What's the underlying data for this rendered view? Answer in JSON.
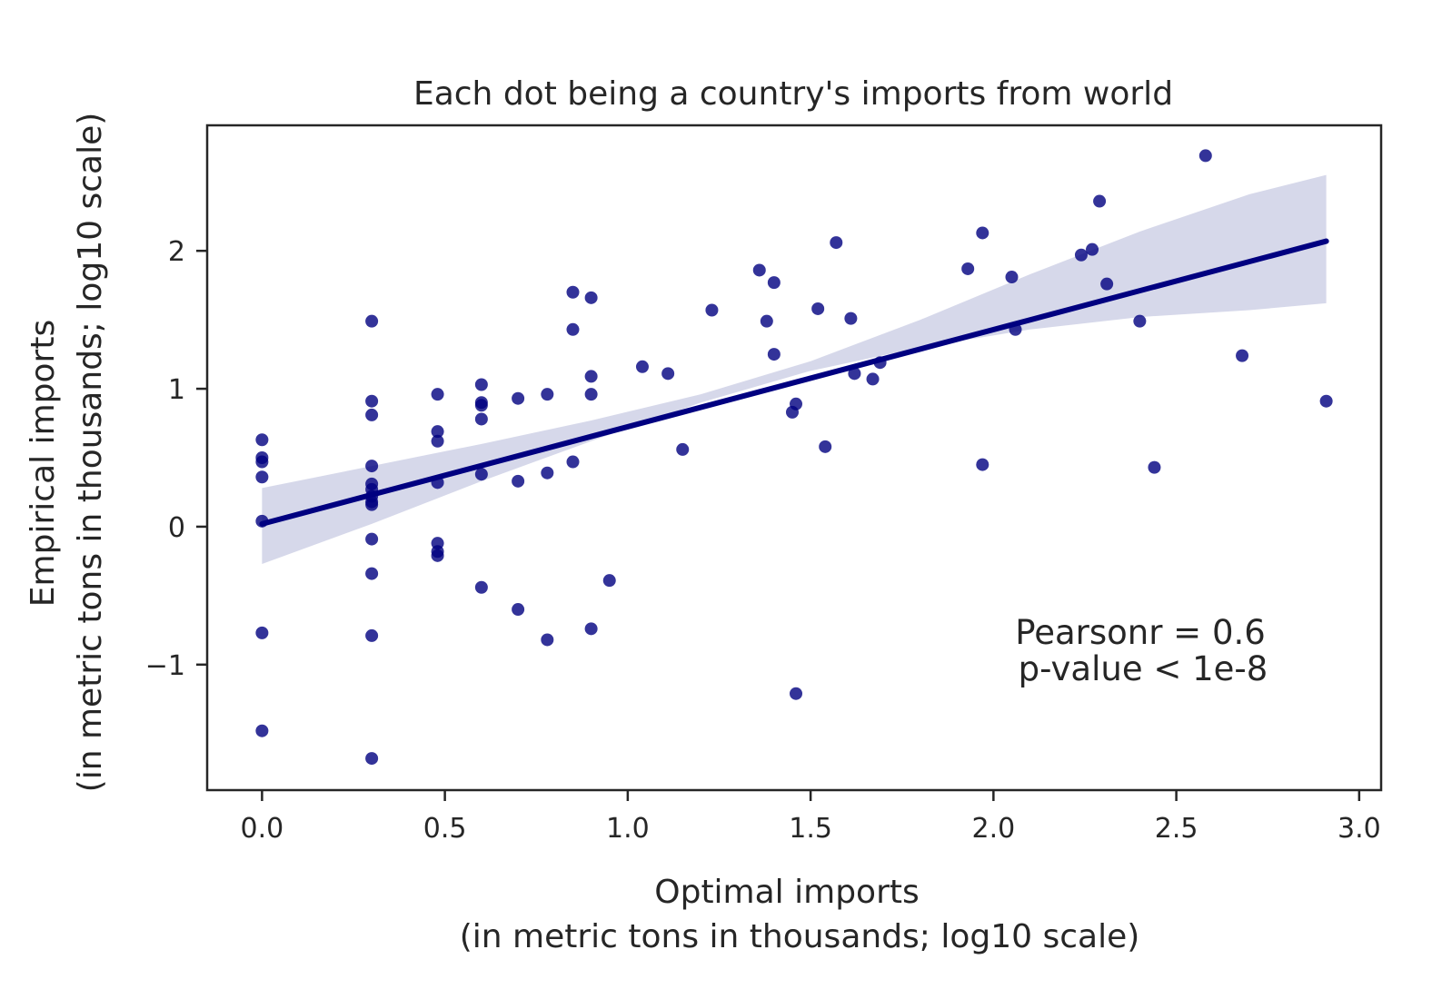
{
  "chart_data": {
    "type": "scatter",
    "title": "Each dot being a country's imports from world",
    "xlabel": [
      "Optimal imports",
      "(in metric tons in thousands; log10 scale)"
    ],
    "ylabel": [
      "Empirical imports",
      "(in metric tons in thousands; log10 scale)"
    ],
    "xlim": [
      -0.15,
      3.06
    ],
    "ylim": [
      -1.91,
      2.91
    ],
    "xticks": [
      0.0,
      0.5,
      1.0,
      1.5,
      2.0,
      2.5,
      3.0
    ],
    "xtick_labels": [
      "0.0",
      "0.5",
      "1.0",
      "1.5",
      "2.0",
      "2.5",
      "3.0"
    ],
    "yticks": [
      -1,
      0,
      1,
      2
    ],
    "ytick_labels": [
      "−1",
      "0",
      "1",
      "2"
    ],
    "grid": false,
    "colors": {
      "points": "#000080",
      "line": "#000080",
      "band": "#c8cbe3",
      "axes": "#262626"
    },
    "regression": {
      "x": [
        0.0,
        2.91
      ],
      "y": [
        0.02,
        2.07
      ],
      "ci_lower": [
        [
          0.0,
          -0.27
        ],
        [
          0.3,
          0.02
        ],
        [
          0.6,
          0.33
        ],
        [
          0.9,
          0.62
        ],
        [
          1.2,
          0.9
        ],
        [
          1.5,
          1.13
        ],
        [
          1.8,
          1.3
        ],
        [
          2.1,
          1.43
        ],
        [
          2.4,
          1.52
        ],
        [
          2.7,
          1.57
        ],
        [
          2.91,
          1.62
        ]
      ],
      "ci_upper": [
        [
          0.0,
          0.28
        ],
        [
          0.3,
          0.44
        ],
        [
          0.6,
          0.6
        ],
        [
          0.9,
          0.77
        ],
        [
          1.2,
          0.96
        ],
        [
          1.5,
          1.2
        ],
        [
          1.8,
          1.5
        ],
        [
          2.1,
          1.83
        ],
        [
          2.4,
          2.14
        ],
        [
          2.7,
          2.41
        ],
        [
          2.91,
          2.55
        ]
      ]
    },
    "points": [
      {
        "x": 0.0,
        "y": 0.63
      },
      {
        "x": 0.0,
        "y": 0.5
      },
      {
        "x": 0.0,
        "y": 0.47
      },
      {
        "x": 0.0,
        "y": 0.36
      },
      {
        "x": 0.0,
        "y": 0.04
      },
      {
        "x": 0.0,
        "y": -0.77
      },
      {
        "x": 0.0,
        "y": -1.48
      },
      {
        "x": 0.3,
        "y": 1.49
      },
      {
        "x": 0.3,
        "y": 0.91
      },
      {
        "x": 0.3,
        "y": 0.81
      },
      {
        "x": 0.3,
        "y": 0.44
      },
      {
        "x": 0.3,
        "y": 0.31
      },
      {
        "x": 0.3,
        "y": 0.27
      },
      {
        "x": 0.3,
        "y": 0.22
      },
      {
        "x": 0.3,
        "y": 0.18
      },
      {
        "x": 0.3,
        "y": 0.16
      },
      {
        "x": 0.3,
        "y": -0.09
      },
      {
        "x": 0.3,
        "y": -0.34
      },
      {
        "x": 0.3,
        "y": -0.79
      },
      {
        "x": 0.3,
        "y": -1.68
      },
      {
        "x": 0.48,
        "y": 0.96
      },
      {
        "x": 0.48,
        "y": 0.69
      },
      {
        "x": 0.48,
        "y": 0.62
      },
      {
        "x": 0.48,
        "y": 0.32
      },
      {
        "x": 0.48,
        "y": -0.12
      },
      {
        "x": 0.48,
        "y": -0.18
      },
      {
        "x": 0.48,
        "y": -0.21
      },
      {
        "x": 0.6,
        "y": 1.03
      },
      {
        "x": 0.6,
        "y": 0.9
      },
      {
        "x": 0.6,
        "y": 0.88
      },
      {
        "x": 0.6,
        "y": 0.78
      },
      {
        "x": 0.6,
        "y": 0.38
      },
      {
        "x": 0.6,
        "y": -0.44
      },
      {
        "x": 0.7,
        "y": 0.93
      },
      {
        "x": 0.7,
        "y": 0.33
      },
      {
        "x": 0.7,
        "y": -0.6
      },
      {
        "x": 0.78,
        "y": 0.96
      },
      {
        "x": 0.78,
        "y": 0.39
      },
      {
        "x": 0.78,
        "y": -0.82
      },
      {
        "x": 0.85,
        "y": 1.7
      },
      {
        "x": 0.85,
        "y": 1.43
      },
      {
        "x": 0.85,
        "y": 0.47
      },
      {
        "x": 0.9,
        "y": 1.66
      },
      {
        "x": 0.9,
        "y": 1.09
      },
      {
        "x": 0.9,
        "y": 0.96
      },
      {
        "x": 0.9,
        "y": -0.74
      },
      {
        "x": 0.95,
        "y": -0.39
      },
      {
        "x": 1.04,
        "y": 1.16
      },
      {
        "x": 1.11,
        "y": 1.11
      },
      {
        "x": 1.15,
        "y": 0.56
      },
      {
        "x": 1.23,
        "y": 1.57
      },
      {
        "x": 1.36,
        "y": 1.86
      },
      {
        "x": 1.38,
        "y": 1.49
      },
      {
        "x": 1.4,
        "y": 1.77
      },
      {
        "x": 1.4,
        "y": 1.25
      },
      {
        "x": 1.45,
        "y": 0.83
      },
      {
        "x": 1.46,
        "y": 0.89
      },
      {
        "x": 1.46,
        "y": -1.21
      },
      {
        "x": 1.52,
        "y": 1.58
      },
      {
        "x": 1.54,
        "y": 0.58
      },
      {
        "x": 1.57,
        "y": 2.06
      },
      {
        "x": 1.61,
        "y": 1.51
      },
      {
        "x": 1.62,
        "y": 1.11
      },
      {
        "x": 1.67,
        "y": 1.07
      },
      {
        "x": 1.69,
        "y": 1.19
      },
      {
        "x": 1.93,
        "y": 1.87
      },
      {
        "x": 1.97,
        "y": 2.13
      },
      {
        "x": 1.97,
        "y": 0.45
      },
      {
        "x": 2.05,
        "y": 1.81
      },
      {
        "x": 2.06,
        "y": 1.43
      },
      {
        "x": 2.24,
        "y": 1.97
      },
      {
        "x": 2.27,
        "y": 2.01
      },
      {
        "x": 2.29,
        "y": 2.36
      },
      {
        "x": 2.31,
        "y": 1.76
      },
      {
        "x": 2.4,
        "y": 1.49
      },
      {
        "x": 2.44,
        "y": 0.43
      },
      {
        "x": 2.58,
        "y": 2.69
      },
      {
        "x": 2.68,
        "y": 1.24
      },
      {
        "x": 2.91,
        "y": 0.91
      }
    ],
    "annotation": [
      "Pearsonr = 0.6",
      "p-value < 1e-8"
    ]
  }
}
